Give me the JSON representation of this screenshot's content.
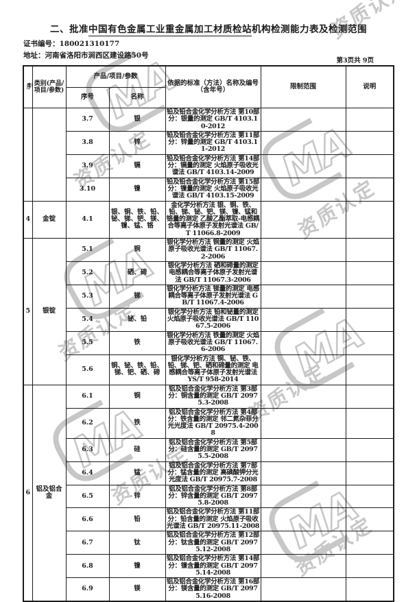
{
  "title": {
    "prefix": "二、批准",
    "underlined": "中国有色金属工业重金属加工材质检站",
    "suffix": "机构检测能力表及检测范围"
  },
  "meta": {
    "cert_label": "证书编号：",
    "cert_no": "180021310177",
    "addr_label": "地址：",
    "address": "河南省洛阳市涧西区建设路50号",
    "page_no": "第3页共 9页"
  },
  "colors": {
    "watermark": "#c7c7c7",
    "text": "#1b1b1b"
  },
  "watermarks": {
    "text": "资质认定",
    "logo_text": "MA"
  },
  "table": {
    "headers": {
      "seq": "序号",
      "category": "类别(产品/项目/参数)",
      "product_group": "产品/项目/参数",
      "product_seq": "序号",
      "product_name": "名称",
      "standard": "依据的标准（方法）名称及编号（含年号）",
      "limit": "限制范围",
      "note": "说明"
    },
    "groups": [
      {
        "seq": "",
        "category": "",
        "rows": [
          {
            "no": "3.7",
            "name": "银",
            "standard": "铅及铅合金化学分析方法 第10部分：银量的测定 GB/T 4103.10-2012",
            "limit": "",
            "note": ""
          },
          {
            "no": "3.8",
            "name": "锌",
            "standard": "铅及铅合金化学分析方法 第11部分：锌量的测定 GB/T 4103.11-2012",
            "limit": "",
            "note": ""
          },
          {
            "no": "3.9",
            "name": "镉",
            "standard": "铅及铅合金化学分析方法 第14部分：镉量的测定 火焰原子吸收光谱法 GB/T 4103.14-2009",
            "limit": "",
            "note": ""
          },
          {
            "no": "3.10",
            "name": "镍",
            "standard": "铅及铅合金化学分析方法 第15部分：镍量的测定 火焰原子吸收光谱法 GB/T 4103.15-2009",
            "limit": "",
            "note": ""
          }
        ]
      },
      {
        "seq": "4",
        "category": "金锭",
        "rows": [
          {
            "no": "4.1",
            "name": "银、铜、铁、铅、铋、锑、钯、镁、镍、锰、铬",
            "standard": "金化学分析方法 银、铜、铁、铅、锑、铋、钯、镁、镍、锰和铬量的测定 乙酸乙酯萃取-电感耦合等离子体原子发射光谱法 GB/T 11066.8-2009",
            "limit": "",
            "note": ""
          }
        ]
      },
      {
        "seq": "5",
        "category": "银锭",
        "rows": [
          {
            "no": "5.1",
            "name": "铜",
            "standard": "银化学分析方法 铜量的测定 火焰原子吸收光谱法 GB/T 11067.2-2006",
            "limit": "",
            "note": ""
          },
          {
            "no": "5.2",
            "name": "硒、碲",
            "standard": "银化学分析方法 硒和碲量的测定 电感耦合等离子体原子发射光谱法 GB/T 11067.3-2006",
            "limit": "",
            "note": ""
          },
          {
            "no": "5.3",
            "name": "锑",
            "standard": "银化学分析方法 锑量的测定 电感耦合等离子体原子发射光谱法 GB/T 11067.4-2006",
            "limit": "",
            "note": ""
          },
          {
            "no": "5.4",
            "name": "铋、铅",
            "standard": "银化学分析方法 铅和铋量的测定 火焰原子吸收光谱法 GB/T 11067.5-2006",
            "limit": "",
            "note": ""
          },
          {
            "no": "5.5",
            "name": "铁",
            "standard": "银化学分析方法 铁量的测定 火焰原子吸收光谱法 GB/T 11067.6-2006",
            "limit": "",
            "note": ""
          },
          {
            "no": "5.6",
            "name": "铜、铋、铁、铅、锑、钯、硒、碲",
            "standard": "银化学分析方法 铜、铋、铁、铅、锑、钯、硒和碲量的测定 电感耦合等离子体原子发射光谱法 YS/T 958-2014",
            "limit": "",
            "note": ""
          }
        ]
      },
      {
        "seq": "6",
        "category": "铝及铝合金",
        "rows": [
          {
            "no": "6.1",
            "name": "铜",
            "standard": "铝及铝合金化学分析方法  第3部分：铜含量的测定 GB/T 20975.3-2008",
            "limit": "",
            "note": ""
          },
          {
            "no": "6.2",
            "name": "铁",
            "standard": "铝及铝合金化学分析方法 第4部分：铁含量的测定 邻二氮杂菲分光光度法 GB/T 20975.4-2008",
            "limit": "",
            "note": ""
          },
          {
            "no": "6.3",
            "name": "硅",
            "standard": "铝及铝合金化学分析方法 第5部分：硅含量的测定 GB/T 20975.5-2008",
            "limit": "",
            "note": ""
          },
          {
            "no": "6.4",
            "name": "锰",
            "standard": "铝及铝合金化学分析方法 第7部分：锰含量的测定 高碘酸钾分光光度法 GB/T 20975.7-2008",
            "limit": "",
            "note": ""
          },
          {
            "no": "6.5",
            "name": "锌",
            "standard": "铝及铝合金化学分析方法 第8部分：锌含量的测定 GB/T 20975.8-2008",
            "limit": "",
            "note": ""
          },
          {
            "no": "6.6",
            "name": "铅",
            "standard": "铝及铝合金化学分析方法 第11部分：铅含量的测定 火焰原子吸收光谱法 GB/T 20975.11-2008",
            "limit": "",
            "note": ""
          },
          {
            "no": "6.7",
            "name": "钛",
            "standard": "铝及铝合金化学分析方法 第12部分：钛含量的测定 GB/T 20975.12-2008",
            "limit": "",
            "note": ""
          },
          {
            "no": "6.8",
            "name": "镍",
            "standard": "铝及铝合金化学分析方法 第14部分：镍含量的测定 GB/T 20975.14-2008",
            "limit": "",
            "note": ""
          },
          {
            "no": "6.9",
            "name": "镁",
            "standard": "铝及铝合金化学分析方法 第16部分：镁含量的测定 GB/T 20975.16-2008",
            "limit": "",
            "note": ""
          }
        ]
      }
    ]
  }
}
